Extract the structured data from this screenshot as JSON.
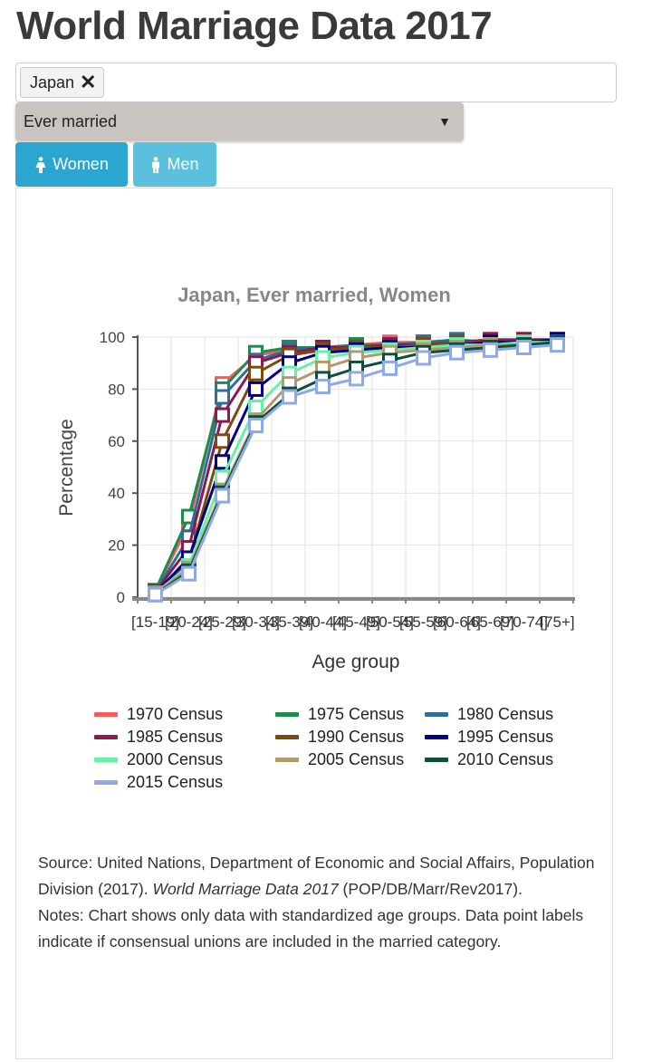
{
  "page": {
    "title": "World Marriage Data 2017"
  },
  "country_filter": {
    "selected_tags": [
      {
        "label": "Japan",
        "remove_icon": "close-icon"
      }
    ]
  },
  "indicator_select": {
    "value": "Ever married",
    "caret_icon": "caret-down-icon"
  },
  "sex_buttons": [
    {
      "label": "Women",
      "icon": "female-icon",
      "active": true,
      "color": "#2aa6d1"
    },
    {
      "label": "Men",
      "icon": "male-icon",
      "active": false,
      "color": "#5bc0de"
    }
  ],
  "source": {
    "prefix": "Source: United Nations, Department of Economic and Social Affairs, Population Division (2017). ",
    "italic": "World Marriage Data 2017",
    "suffix": " (POP/DB/Marr/Rev2017).",
    "notes": "Notes: Chart shows only data with standardized age groups. Data point labels indicate if consensual unions are included in the married category."
  },
  "chart_data": {
    "type": "line",
    "title": "Japan, Ever married, Women",
    "xlabel": "Age group",
    "ylabel": "Percentage",
    "ylim": [
      0,
      100
    ],
    "yticks": [
      0,
      20,
      40,
      60,
      80,
      100
    ],
    "grid": true,
    "legend_position": "bottom",
    "categories": [
      "[15-19]",
      "[20-24]",
      "[25-29]",
      "[30-34]",
      "[35-39]",
      "[40-44]",
      "[45-49]",
      "[50-54]",
      "[55-59]",
      "[60-64]",
      "[65-69]",
      "[70-74]",
      "[75+]"
    ],
    "x_tick_labels_rendered": "[15-1[20-2[25-2[30-3[35-3[40-4[45-4[50-5[55-5[60-6[65-6[70-7[75+]",
    "series": [
      {
        "name": "1970 Census",
        "color": "#f45b5b",
        "values": [
          2.5,
          28,
          82,
          93,
          95,
          96,
          97,
          98,
          98,
          98,
          99,
          99,
          99
        ]
      },
      {
        "name": "1975 Census",
        "color": "#1c8c4e",
        "values": [
          2.5,
          31,
          80,
          94,
          96,
          96,
          97,
          97,
          98,
          98,
          98,
          99,
          99
        ]
      },
      {
        "name": "1980 Census",
        "color": "#2b6f9a",
        "values": [
          2,
          23,
          77,
          91,
          95,
          96,
          96,
          97,
          98,
          99,
          98,
          98,
          99
        ]
      },
      {
        "name": "1985 Census",
        "color": "#8b1a4f",
        "values": [
          2,
          19,
          70,
          90,
          94,
          96,
          96,
          97,
          97,
          98,
          99,
          99,
          99
        ]
      },
      {
        "name": "1990 Census",
        "color": "#7a4a10",
        "values": [
          1.5,
          14,
          60,
          86,
          93,
          95,
          96,
          96,
          97,
          98,
          98,
          98,
          99
        ]
      },
      {
        "name": "1995 Census",
        "color": "#00008b",
        "values": [
          1.5,
          15,
          52,
          80,
          90,
          94,
          95,
          96,
          96,
          97,
          98,
          98,
          99
        ]
      },
      {
        "name": "2000 Census",
        "color": "#66f0a8",
        "values": [
          1.5,
          12,
          46,
          73,
          86,
          92,
          94,
          95,
          96,
          97,
          97,
          98,
          98
        ]
      },
      {
        "name": "2005 Census",
        "color": "#b39a6e",
        "values": [
          1.5,
          11,
          41,
          68,
          82,
          88,
          92,
          94,
          95,
          96,
          97,
          97,
          98
        ]
      },
      {
        "name": "2010 Census",
        "color": "#0d4f3c",
        "values": [
          1,
          10,
          40,
          67,
          78,
          84,
          88,
          91,
          94,
          95,
          96,
          97,
          98
        ]
      },
      {
        "name": "2015 Census",
        "color": "#8ea9e8",
        "values": [
          1,
          9,
          39,
          66,
          77,
          81,
          84,
          88,
          92,
          94,
          95,
          96,
          97
        ]
      }
    ]
  }
}
